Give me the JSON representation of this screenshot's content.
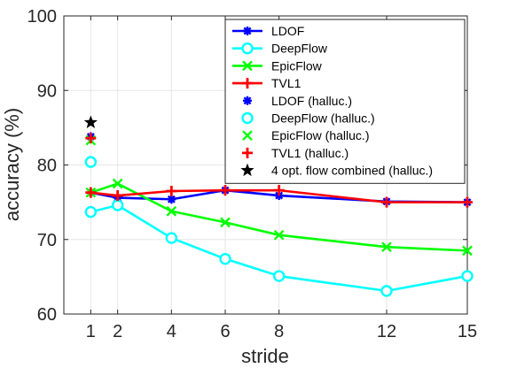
{
  "chart_data": {
    "type": "line",
    "xlabel": "stride",
    "ylabel": "accuracy (%)",
    "xlim": [
      0,
      15
    ],
    "ylim": [
      60,
      100
    ],
    "xticks": [
      1,
      2,
      4,
      6,
      8,
      12,
      15
    ],
    "yticks": [
      60,
      70,
      80,
      90,
      100
    ],
    "grid": true,
    "legend_position": "top-right",
    "x": [
      1,
      2,
      4,
      6,
      8,
      12,
      15
    ],
    "series": [
      {
        "name": "LDOF",
        "color": "#0000ff",
        "marker": "asterisk",
        "values": [
          76.3,
          75.6,
          75.4,
          76.6,
          75.9,
          75.1,
          75.0
        ]
      },
      {
        "name": "DeepFlow",
        "color": "#00ffff",
        "marker": "circle",
        "values": [
          73.7,
          74.6,
          70.2,
          67.4,
          65.1,
          63.1,
          65.1
        ]
      },
      {
        "name": "EpicFlow",
        "color": "#00ff00",
        "marker": "x",
        "values": [
          76.3,
          77.5,
          73.8,
          72.3,
          70.6,
          69.0,
          68.5
        ]
      },
      {
        "name": "TVL1",
        "color": "#ff0000",
        "marker": "plus",
        "values": [
          76.3,
          75.9,
          76.5,
          76.6,
          76.6,
          75.0,
          75.0
        ]
      }
    ],
    "hallucinated": [
      {
        "name": "LDOF (halluc.)",
        "color": "#0000ff",
        "marker": "asterisk",
        "x": 1,
        "y": 83.8
      },
      {
        "name": "DeepFlow (halluc.)",
        "color": "#00ffff",
        "marker": "circle",
        "x": 1,
        "y": 80.4
      },
      {
        "name": "EpicFlow (halluc.)",
        "color": "#00ff00",
        "marker": "x",
        "x": 1,
        "y": 83.3
      },
      {
        "name": "TVL1 (halluc.)",
        "color": "#ff0000",
        "marker": "plus",
        "x": 1,
        "y": 83.6
      },
      {
        "name": "4 opt. flow combined (halluc.)",
        "color": "#000000",
        "marker": "star",
        "x": 1,
        "y": 85.7
      }
    ]
  }
}
